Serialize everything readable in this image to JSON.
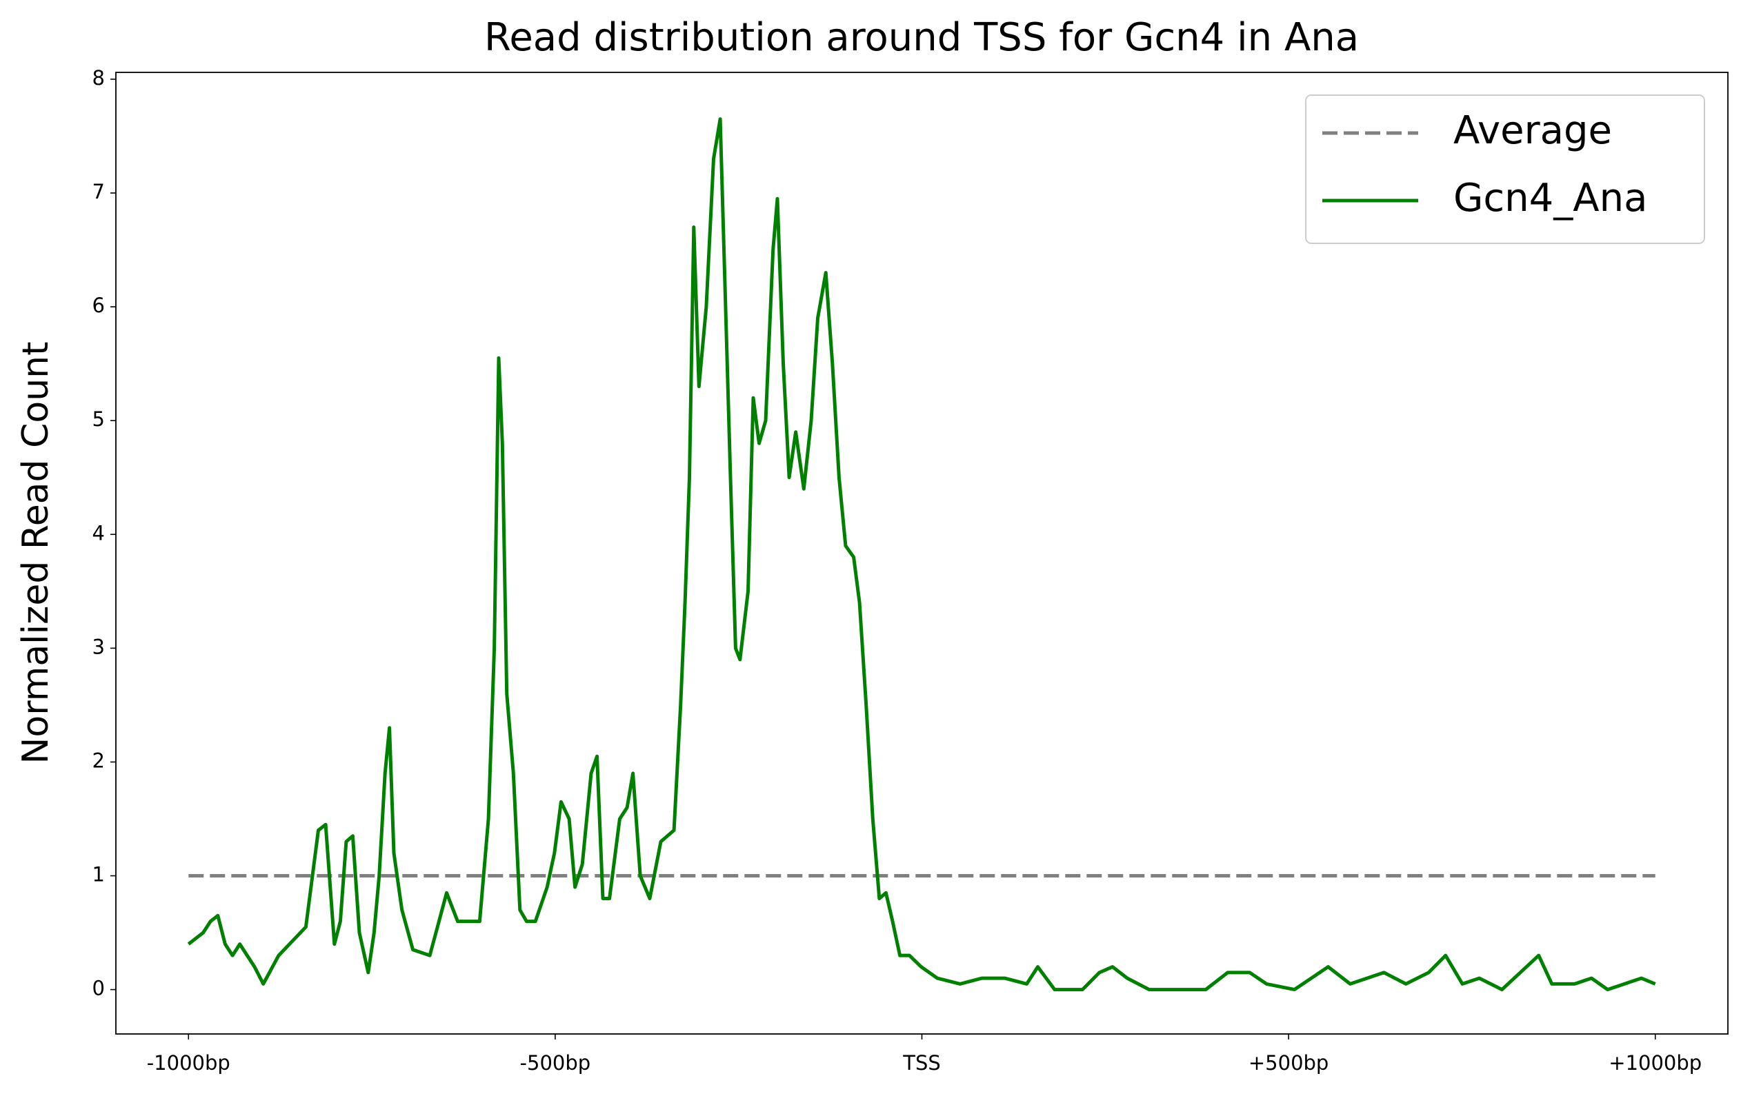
{
  "chart_data": {
    "type": "line",
    "title": "Read distribution around TSS for Gcn4 in Ana",
    "y_label": "Normalized Read Count",
    "xlim": [
      -1099,
      1099
    ],
    "ylim": [
      -0.39,
      8.06
    ],
    "xticks": [
      {
        "value": -1000,
        "label": "-1000bp"
      },
      {
        "value": -500,
        "label": "-500bp"
      },
      {
        "value": 0,
        "label": "TSS"
      },
      {
        "value": 500,
        "label": "+500bp"
      },
      {
        "value": 1000,
        "label": "+1000bp"
      }
    ],
    "yticks": [
      0,
      1,
      2,
      3,
      4,
      5,
      6,
      7,
      8
    ],
    "legend": "upper right",
    "series": [
      {
        "name": "Average",
        "color": "#808080",
        "dashed": true,
        "x": [
          -1000,
          1000
        ],
        "values": [
          1,
          1
        ]
      },
      {
        "name": "Gcn4_Ana",
        "color": "#008000",
        "dashed": false,
        "x": [
          -1000,
          -990,
          -980,
          -970,
          -960,
          -950,
          -940,
          -930,
          -920,
          -910,
          -898,
          -877,
          -840,
          -823,
          -813,
          -801,
          -793,
          -785,
          -776,
          -767,
          -755,
          -747,
          -740,
          -732,
          -726,
          -720,
          -709,
          -694,
          -671,
          -648,
          -633,
          -618,
          -603,
          -591,
          -583,
          -577,
          -572,
          -566,
          -557,
          -548,
          -539,
          -527,
          -511,
          -501,
          -492,
          -481,
          -473,
          -463,
          -451,
          -443,
          -435,
          -426,
          -412,
          -402,
          -394,
          -384,
          -371,
          -356,
          -338,
          -329,
          -323,
          -317,
          -311,
          -304,
          -294,
          -284,
          -275,
          -269,
          -261,
          -254,
          -248,
          -237,
          -230,
          -222,
          -213,
          -203,
          -197,
          -189,
          -181,
          -172,
          -161,
          -151,
          -142,
          -131,
          -122,
          -113,
          -104,
          -93,
          -85,
          -76,
          -67,
          -58,
          -49,
          -40,
          -30,
          -17,
          -1,
          21,
          52,
          82,
          113,
          143,
          158,
          181,
          219,
          242,
          260,
          280,
          310,
          387,
          417,
          447,
          470,
          508,
          554,
          584,
          630,
          660,
          691,
          714,
          737,
          760,
          791,
          841,
          859,
          890,
          913,
          935,
          981,
          1000
        ],
        "values": [
          0.4,
          0.45,
          0.5,
          0.6,
          0.65,
          0.4,
          0.3,
          0.4,
          0.3,
          0.2,
          0.05,
          0.3,
          0.55,
          1.4,
          1.45,
          0.4,
          0.6,
          1.3,
          1.35,
          0.5,
          0.15,
          0.5,
          1.0,
          1.9,
          2.3,
          1.2,
          0.7,
          0.35,
          0.3,
          0.85,
          0.6,
          0.6,
          0.6,
          1.5,
          3.0,
          5.55,
          4.8,
          2.6,
          1.9,
          0.7,
          0.6,
          0.6,
          0.9,
          1.2,
          1.65,
          1.5,
          0.9,
          1.1,
          1.9,
          2.05,
          0.8,
          0.8,
          1.5,
          1.6,
          1.9,
          1.0,
          0.8,
          1.3,
          1.4,
          2.5,
          3.4,
          4.5,
          6.7,
          5.3,
          6.0,
          7.3,
          7.65,
          6.3,
          4.5,
          3.0,
          2.9,
          3.5,
          5.2,
          4.8,
          5.0,
          6.5,
          6.95,
          5.5,
          4.5,
          4.9,
          4.4,
          5.0,
          5.9,
          6.3,
          5.5,
          4.5,
          3.9,
          3.8,
          3.4,
          2.5,
          1.5,
          0.8,
          0.85,
          0.6,
          0.3,
          0.3,
          0.2,
          0.1,
          0.05,
          0.1,
          0.1,
          0.05,
          0.2,
          0.0,
          0.0,
          0.15,
          0.2,
          0.1,
          0.0,
          0.0,
          0.15,
          0.15,
          0.05,
          0.0,
          0.2,
          0.05,
          0.15,
          0.05,
          0.15,
          0.3,
          0.05,
          0.1,
          0.0,
          0.3,
          0.05,
          0.05,
          0.1,
          0.0,
          0.1,
          0.05
        ]
      }
    ]
  }
}
